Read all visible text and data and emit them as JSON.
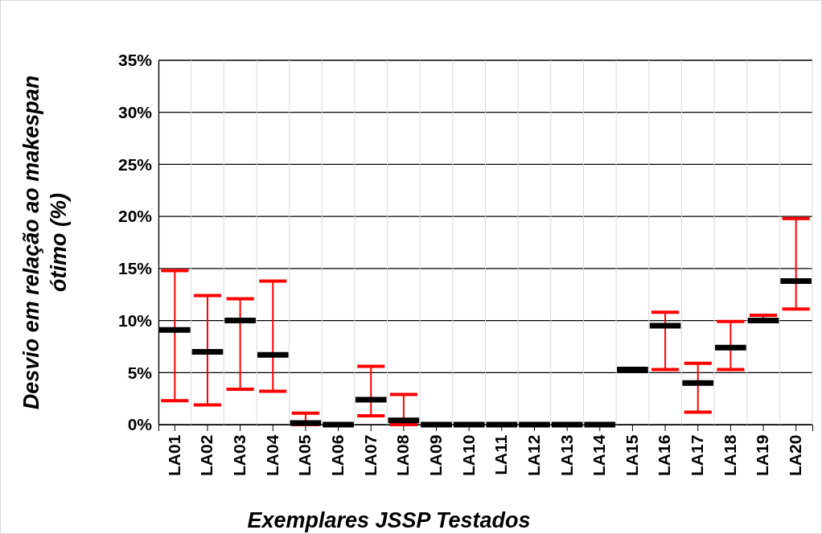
{
  "chart_data": {
    "type": "box",
    "xlabel": "Exemplares JSSP Testados",
    "ylabel": "Desvio em relação ao makespan ótimo (%)",
    "categories": [
      "LA01",
      "LA02",
      "LA03",
      "LA04",
      "LA05",
      "LA06",
      "LA07",
      "LA08",
      "LA09",
      "LA10",
      "LA11",
      "LA12",
      "LA13",
      "LA14",
      "LA15",
      "LA16",
      "LA17",
      "LA18",
      "LA19",
      "LA20"
    ],
    "boxes": [
      {
        "low": 2.3,
        "q1": 9.1,
        "median": 9.1,
        "q3": 9.1,
        "high": 14.8
      },
      {
        "low": 1.9,
        "q1": 7.0,
        "median": 7.0,
        "q3": 7.0,
        "high": 12.4
      },
      {
        "low": 3.4,
        "q1": 10.0,
        "median": 10.0,
        "q3": 10.0,
        "high": 12.1
      },
      {
        "low": 3.2,
        "q1": 6.7,
        "median": 6.7,
        "q3": 6.7,
        "high": 13.8
      },
      {
        "low": 0,
        "q1": 0.15,
        "median": 0.15,
        "q3": 0.15,
        "high": 1.1
      },
      {
        "low": 0,
        "q1": 0,
        "median": 0,
        "q3": 0,
        "high": 0
      },
      {
        "low": 0.85,
        "q1": 2.4,
        "median": 2.4,
        "q3": 2.4,
        "high": 5.6
      },
      {
        "low": 0,
        "q1": 0.4,
        "median": 0.4,
        "q3": 0.4,
        "high": 2.9
      },
      {
        "low": 0,
        "q1": 0,
        "median": 0,
        "q3": 0,
        "high": 0
      },
      {
        "low": 0,
        "q1": 0,
        "median": 0,
        "q3": 0,
        "high": 0
      },
      {
        "low": 0,
        "q1": 0,
        "median": 0,
        "q3": 0,
        "high": 0
      },
      {
        "low": 0,
        "q1": 0,
        "median": 0,
        "q3": 0,
        "high": 0
      },
      {
        "low": 0,
        "q1": 0,
        "median": 0,
        "q3": 0,
        "high": 0
      },
      {
        "low": 0,
        "q1": 0,
        "median": 0,
        "q3": 0,
        "high": 0
      },
      {
        "low": 5.3,
        "q1": 5.3,
        "median": 5.3,
        "q3": 5.3,
        "high": 5.3
      },
      {
        "low": 5.3,
        "q1": 9.5,
        "median": 9.5,
        "q3": 9.5,
        "high": 10.8
      },
      {
        "low": 1.2,
        "q1": 4.0,
        "median": 4.0,
        "q3": 4.0,
        "high": 5.9
      },
      {
        "low": 5.3,
        "q1": 7.4,
        "median": 7.4,
        "q3": 7.4,
        "high": 9.9
      },
      {
        "low": 10.0,
        "q1": 10.0,
        "median": 10.0,
        "q3": 10.0,
        "high": 10.5
      },
      {
        "low": 11.1,
        "q1": 13.8,
        "median": 13.8,
        "q3": 13.8,
        "high": 19.8
      }
    ],
    "color": "#000000",
    "ylim": [
      0,
      35
    ],
    "yticks": [
      {
        "value": 0,
        "label": "0%"
      },
      {
        "value": 5,
        "label": "5%"
      },
      {
        "value": 10,
        "label": "10%"
      },
      {
        "value": 15,
        "label": "15%"
      },
      {
        "value": 20,
        "label": "20%"
      },
      {
        "value": 25,
        "label": "25%"
      },
      {
        "value": 30,
        "label": "30%"
      },
      {
        "value": 35,
        "label": "35%"
      }
    ],
    "grid": true
  }
}
